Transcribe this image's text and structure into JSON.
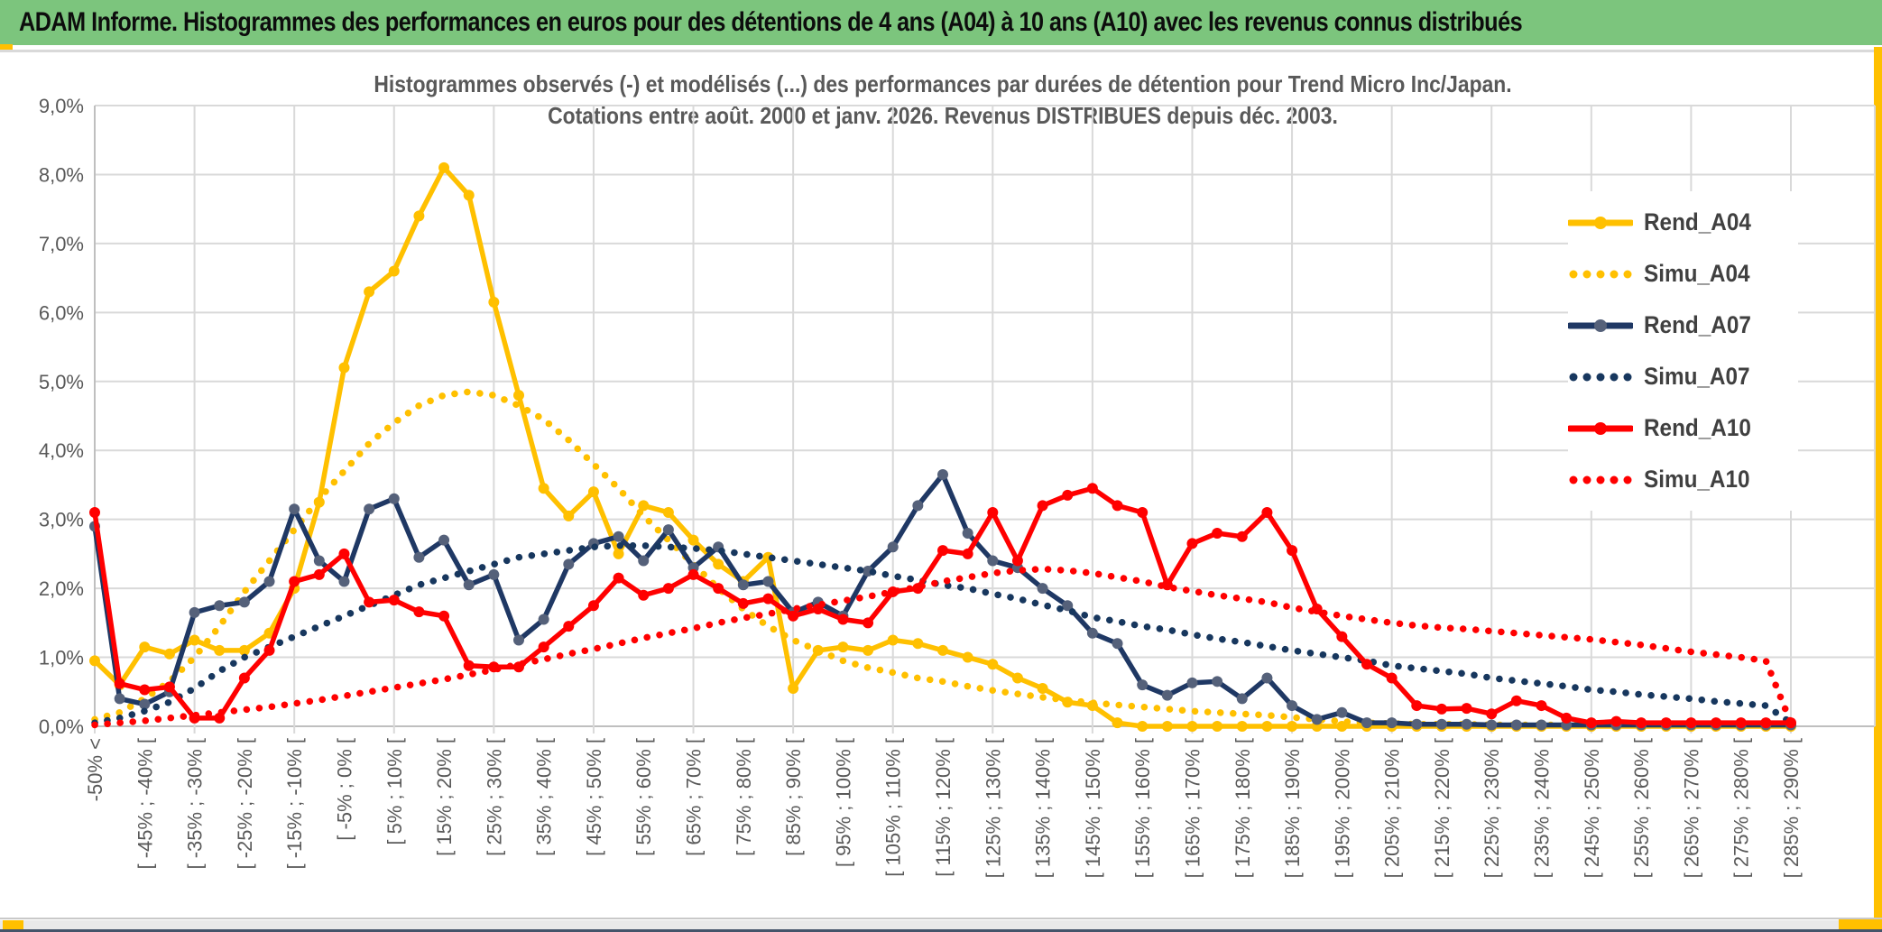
{
  "window": {
    "title": "ADAM Informe. Histogrammes des performances en euros pour des détentions de 4 ans (A04) à 10 ans (A10) avec les revenus connus distribués"
  },
  "accent_colors": {
    "banner_green": "#7CC57D",
    "gold": "#FFC000",
    "edge_navy": "#44546A",
    "grid": "#D9D9D9",
    "axis_text": "#595959"
  },
  "chart_data": {
    "type": "line",
    "title": "Histogrammes observés (-) et modélisés (...) des performances par durées de détention pour Trend Micro Inc/Japan.",
    "subtitle": "Cotations entre août. 2000 et janv. 2026. Revenus DISTRIBUES depuis déc. 2003.",
    "ylabel": "",
    "xlabel": "",
    "ylim": [
      0,
      9
    ],
    "grid": true,
    "legend_position": "right-inside",
    "y_tick_labels": [
      "9,0%",
      "8,0%",
      "7,0%",
      "6,0%",
      "5,0%",
      "4,0%",
      "3,0%",
      "2,0%",
      "1,0%",
      "0,0%"
    ],
    "x_tick_labels": [
      "-50% <",
      "[ -45% ; -40% [",
      "[ -35% ; -30% [",
      "[ -25% ; -20% [",
      "[ -15% ; -10% [",
      "[ -5% ; 0% [",
      "[ 5% ; 10% [",
      "[ 15% ; 20% [",
      "[ 25% ; 30% [",
      "[ 35% ; 40% [",
      "[ 45% ; 50% [",
      "[ 55% ; 60% [",
      "[ 65% ; 70% [",
      "[ 75% ; 80% [",
      "[ 85% ; 90% [",
      "[ 95% ; 100% [",
      "[ 105% ; 110% [",
      "[ 115% ; 120% [",
      "[ 125% ; 130% [",
      "[ 135% ; 140% [",
      "[ 145% ; 150% [",
      "[ 155% ; 160% [",
      "[ 165% ; 170% [",
      "[ 175% ; 180% [",
      "[ 185% ; 190% [",
      "[ 195% ; 200% [",
      "[ 205% ; 210% [",
      "[ 215% ; 220% [",
      "[ 225% ; 230% [",
      "[ 235% ; 240% [",
      "[ 245% ; 250% [",
      "[ 255% ; 260% [",
      "[ 265% ; 270% [",
      "[ 275% ; 280% [",
      "[ 285% ; 290% ["
    ],
    "x_label_every": 2,
    "n_points": 69,
    "series": [
      {
        "name": "Rend_A04",
        "style": "solid",
        "color": "#FFC000",
        "marker_color": "#FFC000",
        "values": [
          0.95,
          0.6,
          1.15,
          1.05,
          1.25,
          1.1,
          1.1,
          1.35,
          2.0,
          3.25,
          5.2,
          6.3,
          6.6,
          7.4,
          8.1,
          7.7,
          6.15,
          4.8,
          3.45,
          3.05,
          3.4,
          2.5,
          3.2,
          3.1,
          2.7,
          2.35,
          2.1,
          2.45,
          0.55,
          1.1,
          1.15,
          1.1,
          1.25,
          1.2,
          1.1,
          1.0,
          0.9,
          0.7,
          0.55,
          0.35,
          0.3,
          0.05,
          0,
          0,
          0,
          0,
          0,
          0,
          0,
          0,
          0,
          0,
          0,
          0,
          0,
          0,
          0,
          0,
          0,
          0,
          0,
          0,
          0,
          0,
          0,
          0,
          0,
          0,
          0
        ]
      },
      {
        "name": "Simu_A04",
        "style": "dotted",
        "color": "#FFC000",
        "marker_color": "#FFC000",
        "values": [
          0.1,
          0.2,
          0.4,
          0.65,
          1.0,
          1.45,
          1.95,
          2.4,
          2.85,
          3.3,
          3.7,
          4.1,
          4.4,
          4.65,
          4.8,
          4.85,
          4.8,
          4.65,
          4.45,
          4.15,
          3.8,
          3.45,
          3.05,
          2.7,
          2.35,
          2.0,
          1.7,
          1.45,
          1.25,
          1.1,
          0.95,
          0.85,
          0.78,
          0.7,
          0.65,
          0.58,
          0.52,
          0.47,
          0.42,
          0.38,
          0.34,
          0.31,
          0.28,
          0.25,
          0.22,
          0.2,
          0.18,
          0.16,
          0.13,
          0.1,
          0.07,
          0.05,
          0.04,
          0.03,
          0.03,
          0.03,
          0.02,
          0.02,
          0.02,
          0.02,
          0.02,
          0.02,
          0.02,
          0.02,
          0.02,
          0.02,
          0.02,
          0.02,
          0.02
        ]
      },
      {
        "name": "Rend_A07",
        "style": "solid",
        "color": "#1F3864",
        "marker_color": "#55617A",
        "values": [
          2.9,
          0.4,
          0.32,
          0.5,
          1.65,
          1.75,
          1.8,
          2.1,
          3.15,
          2.4,
          2.1,
          3.15,
          3.3,
          2.45,
          2.7,
          2.05,
          2.2,
          1.25,
          1.55,
          2.35,
          2.65,
          2.75,
          2.4,
          2.85,
          2.3,
          2.6,
          2.05,
          2.1,
          1.65,
          1.8,
          1.6,
          2.25,
          2.6,
          3.2,
          3.65,
          2.8,
          2.4,
          2.3,
          2.0,
          1.75,
          1.35,
          1.2,
          0.6,
          0.45,
          0.63,
          0.65,
          0.4,
          0.7,
          0.3,
          0.1,
          0.2,
          0.05,
          0.05,
          0.03,
          0.03,
          0.03,
          0.02,
          0.02,
          0.02,
          0.02,
          0.02,
          0.02,
          0.02,
          0.02,
          0.02,
          0.02,
          0.02,
          0.02,
          0.02
        ]
      },
      {
        "name": "Simu_A07",
        "style": "dotted",
        "color": "#17375E",
        "marker_color": "#17375E",
        "values": [
          0.05,
          0.12,
          0.22,
          0.35,
          0.55,
          0.8,
          1.0,
          1.15,
          1.3,
          1.45,
          1.6,
          1.75,
          1.9,
          2.05,
          2.15,
          2.25,
          2.35,
          2.45,
          2.5,
          2.55,
          2.6,
          2.62,
          2.62,
          2.6,
          2.58,
          2.55,
          2.5,
          2.45,
          2.4,
          2.35,
          2.3,
          2.25,
          2.18,
          2.12,
          2.05,
          2.0,
          1.92,
          1.85,
          1.76,
          1.68,
          1.58,
          1.52,
          1.45,
          1.4,
          1.33,
          1.27,
          1.22,
          1.16,
          1.1,
          1.05,
          1.0,
          0.95,
          0.88,
          0.84,
          0.8,
          0.76,
          0.7,
          0.66,
          0.62,
          0.58,
          0.53,
          0.5,
          0.46,
          0.43,
          0.4,
          0.36,
          0.33,
          0.3,
          0.05
        ]
      },
      {
        "name": "Rend_A10",
        "style": "solid",
        "color": "#FF0000",
        "marker_color": "#FF0000",
        "values": [
          3.1,
          0.62,
          0.53,
          0.57,
          0.12,
          0.12,
          0.7,
          1.1,
          2.1,
          2.2,
          2.5,
          1.8,
          1.83,
          1.66,
          1.6,
          0.88,
          0.86,
          0.86,
          1.15,
          1.45,
          1.75,
          2.15,
          1.9,
          2.0,
          2.2,
          2.0,
          1.78,
          1.85,
          1.6,
          1.7,
          1.55,
          1.5,
          1.95,
          2.0,
          2.55,
          2.5,
          3.1,
          2.4,
          3.2,
          3.35,
          3.45,
          3.2,
          3.1,
          2.05,
          2.65,
          2.8,
          2.75,
          3.1,
          2.55,
          1.7,
          1.3,
          0.9,
          0.7,
          0.3,
          0.25,
          0.26,
          0.18,
          0.37,
          0.3,
          0.12,
          0.05,
          0.07,
          0.05,
          0.05,
          0.05,
          0.05,
          0.05,
          0.05,
          0.05
        ]
      },
      {
        "name": "Simu_A10",
        "style": "dotted",
        "color": "#FF0000",
        "marker_color": "#FF0000",
        "values": [
          0.02,
          0.05,
          0.08,
          0.12,
          0.16,
          0.2,
          0.24,
          0.28,
          0.33,
          0.38,
          0.44,
          0.5,
          0.56,
          0.62,
          0.68,
          0.75,
          0.82,
          0.9,
          0.97,
          1.05,
          1.12,
          1.2,
          1.28,
          1.35,
          1.42,
          1.5,
          1.57,
          1.63,
          1.7,
          1.76,
          1.82,
          1.88,
          1.95,
          2.02,
          2.1,
          2.16,
          2.22,
          2.26,
          2.28,
          2.26,
          2.22,
          2.16,
          2.1,
          2.02,
          1.96,
          1.9,
          1.85,
          1.8,
          1.72,
          1.66,
          1.6,
          1.55,
          1.5,
          1.46,
          1.43,
          1.41,
          1.38,
          1.35,
          1.32,
          1.29,
          1.26,
          1.22,
          1.18,
          1.13,
          1.08,
          1.04,
          1.0,
          0.95,
          0.05
        ]
      }
    ]
  },
  "legend": {
    "items": [
      {
        "label": "Rend_A04"
      },
      {
        "label": "Simu_A04"
      },
      {
        "label": "Rend_A07"
      },
      {
        "label": "Simu_A07"
      },
      {
        "label": "Rend_A10"
      },
      {
        "label": "Simu_A10"
      }
    ]
  }
}
